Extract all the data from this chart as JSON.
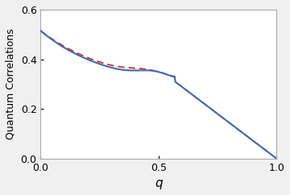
{
  "title": "",
  "xlabel": "q",
  "ylabel": "Quantum Correlations",
  "xlim": [
    0.0,
    1.0
  ],
  "ylim": [
    0.0,
    0.6
  ],
  "xticks": [
    0.0,
    0.5,
    1.0
  ],
  "yticks": [
    0.0,
    0.2,
    0.4,
    0.6
  ],
  "solid_color": "#4169b0",
  "dashed_color": "#cc2222",
  "background_color": "#f0f0f0",
  "figsize": [
    3.6,
    2.42
  ],
  "dpi": 100
}
